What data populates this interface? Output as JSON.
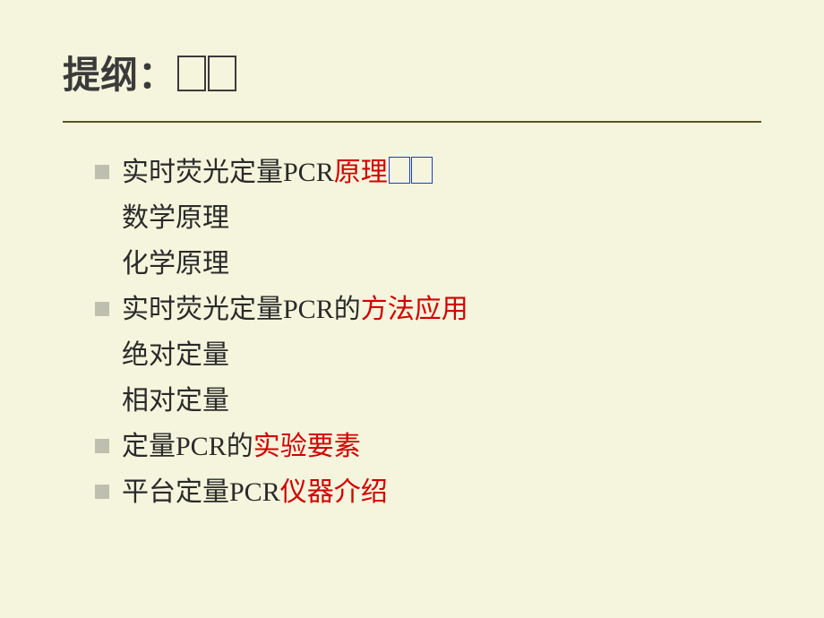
{
  "slide": {
    "title": "提纲：",
    "background_color": "#f5f5dd",
    "title_color": "#3b3b3b",
    "title_fontsize": 42,
    "divider_color": "#5b5327",
    "bullet_color": "#bfbfb0",
    "body_color": "#2a2a2a",
    "accent_color": "#d40000",
    "box_border_color": "#1a3cc9",
    "body_fontsize": 30,
    "items": [
      {
        "level": 0,
        "parts": [
          {
            "text": "实时荧光定量PCR",
            "color": "body"
          },
          {
            "text": "原理",
            "color": "accent"
          },
          {
            "type": "box"
          },
          {
            "type": "box"
          }
        ]
      },
      {
        "level": 1,
        "parts": [
          {
            "text": "数学原理",
            "color": "body"
          }
        ]
      },
      {
        "level": 1,
        "parts": [
          {
            "text": "化学原理",
            "color": "body"
          }
        ]
      },
      {
        "level": 0,
        "parts": [
          {
            "text": "实时荧光定量PCR的",
            "color": "body"
          },
          {
            "text": "方法应用",
            "color": "accent"
          }
        ]
      },
      {
        "level": 1,
        "parts": [
          {
            "text": "绝对定量",
            "color": "body"
          }
        ]
      },
      {
        "level": 1,
        "parts": [
          {
            "text": "相对定量",
            "color": "body"
          }
        ]
      },
      {
        "level": 0,
        "parts": [
          {
            "text": "定量PCR的",
            "color": "body"
          },
          {
            "text": "实验要素",
            "color": "accent"
          }
        ]
      },
      {
        "level": 0,
        "parts": [
          {
            "text": "平台定量PCR",
            "color": "body"
          },
          {
            "text": "仪器介绍",
            "color": "accent"
          }
        ]
      }
    ]
  }
}
